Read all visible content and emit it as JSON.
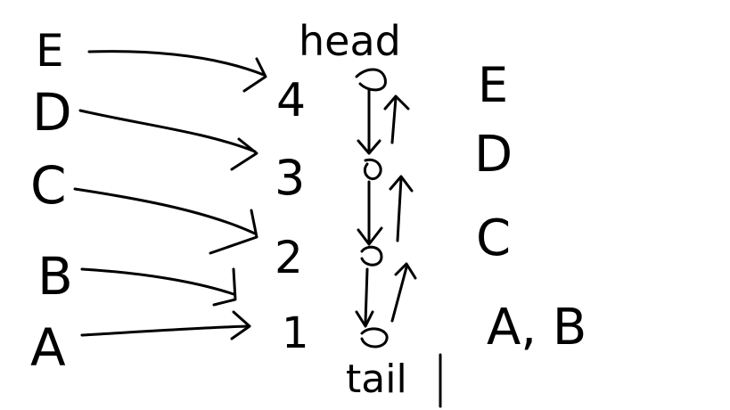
{
  "diagram": {
    "top_label": "head",
    "bottom_label": "tail",
    "left_nodes": [
      "E",
      "D",
      "C",
      "B",
      "A"
    ],
    "numbers": [
      "4",
      "3",
      "2",
      "1"
    ],
    "right_labels": [
      "E",
      "D",
      "C",
      "A, B"
    ]
  }
}
